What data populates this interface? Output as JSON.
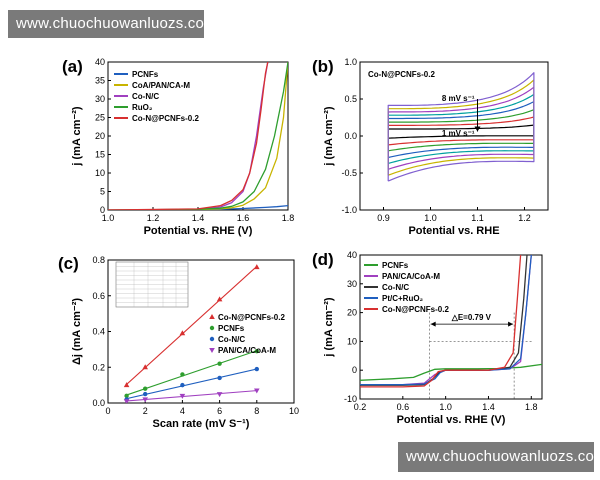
{
  "watermark": {
    "top": "www.chuochuowanluozs.com",
    "bottom": "www.chuochuowanluozs.com"
  },
  "chart_data": [
    {
      "panel": "(a)",
      "type": "line",
      "xlabel": "Potential vs. RHE (V)",
      "ylabel": "j (mA cm⁻²)",
      "xlim": [
        1.0,
        1.8
      ],
      "ylim": [
        0,
        40
      ],
      "xticks": [
        "1.0",
        "1.2",
        "1.4",
        "1.6",
        "1.8"
      ],
      "yticks": [
        "0",
        "5",
        "10",
        "15",
        "20",
        "25",
        "30",
        "35",
        "40"
      ],
      "legend": "top-left",
      "series": [
        {
          "name": "PCNFs",
          "color": "#1f5fbf",
          "x": [
            1.0,
            1.2,
            1.4,
            1.5,
            1.6,
            1.7,
            1.75,
            1.8
          ],
          "y": [
            0,
            0,
            0.1,
            0.2,
            0.4,
            0.7,
            0.9,
            1.2
          ]
        },
        {
          "name": "CoA/PAN/CA-M",
          "color": "#c8b400",
          "x": [
            1.0,
            1.4,
            1.5,
            1.55,
            1.6,
            1.65,
            1.7,
            1.75,
            1.78,
            1.8
          ],
          "y": [
            0,
            0.1,
            0.3,
            0.6,
            1.3,
            3,
            6,
            14,
            25,
            40
          ]
        },
        {
          "name": "Co-N/C",
          "color": "#a040c0",
          "x": [
            1.0,
            1.4,
            1.5,
            1.55,
            1.6,
            1.63,
            1.66,
            1.69,
            1.71
          ],
          "y": [
            0,
            0.2,
            0.8,
            2,
            5,
            10,
            20,
            33,
            40
          ]
        },
        {
          "name": "RuO₂",
          "color": "#2e9e2e",
          "x": [
            1.0,
            1.4,
            1.5,
            1.55,
            1.6,
            1.65,
            1.7,
            1.74,
            1.78,
            1.8
          ],
          "y": [
            0,
            0.2,
            0.5,
            1,
            2.2,
            5,
            11,
            20,
            32,
            40
          ]
        },
        {
          "name": "Co-N@PCNFs-0.2",
          "color": "#d83030",
          "x": [
            1.0,
            1.4,
            1.5,
            1.55,
            1.6,
            1.63,
            1.66,
            1.68,
            1.7,
            1.71
          ],
          "y": [
            0,
            0.3,
            1.2,
            2.6,
            5.5,
            10,
            18,
            27,
            37,
            40
          ]
        }
      ]
    },
    {
      "panel": "(b)",
      "type": "line",
      "title": "Co-N@PCNFs-0.2",
      "xlabel": "Potential vs. RHE",
      "ylabel": "j (mA cm⁻²)",
      "xlim": [
        0.85,
        1.25
      ],
      "ylim": [
        -1.0,
        1.0
      ],
      "xticks": [
        "0.9",
        "1.0",
        "1.1",
        "1.2"
      ],
      "yticks": [
        "-1.0",
        "-0.5",
        "0.0",
        "0.5",
        "1.0"
      ],
      "annotations": [
        "8 mV s⁻¹",
        "1 mV s⁻¹"
      ],
      "cv_x_range": [
        0.91,
        1.22
      ],
      "scan_rates_mV_s": [
        1,
        2,
        3,
        4,
        5,
        6,
        7,
        8
      ],
      "peak_current_anodic": [
        0.08,
        0.17,
        0.25,
        0.34,
        0.42,
        0.5,
        0.58,
        0.66
      ],
      "colors": [
        "#000000",
        "#d83030",
        "#2e9e2e",
        "#1f5fbf",
        "#00a0a0",
        "#a040c0",
        "#c8b400",
        "#8060d0"
      ]
    },
    {
      "panel": "(c)",
      "type": "scatter",
      "xlabel": "Scan rate (mV S⁻¹)",
      "ylabel": "Δj (mA cm⁻²)",
      "xlim": [
        0,
        10
      ],
      "ylim": [
        0,
        0.8
      ],
      "xticks": [
        "0",
        "2",
        "4",
        "6",
        "8",
        "10"
      ],
      "yticks": [
        "0.0",
        "0.2",
        "0.4",
        "0.6",
        "0.8"
      ],
      "legend": "right",
      "series": [
        {
          "name": "Co-N@PCNFs-0.2",
          "color": "#d83030",
          "marker": "triangle",
          "x": [
            1,
            2,
            4,
            6,
            8
          ],
          "y": [
            0.1,
            0.2,
            0.39,
            0.58,
            0.76
          ]
        },
        {
          "name": "PCNFs",
          "color": "#2e9e2e",
          "marker": "circle",
          "x": [
            1,
            2,
            4,
            6,
            8
          ],
          "y": [
            0.04,
            0.08,
            0.16,
            0.22,
            0.29
          ]
        },
        {
          "name": "Co-N/C",
          "color": "#1f5fbf",
          "marker": "circle",
          "x": [
            1,
            2,
            4,
            6,
            8
          ],
          "y": [
            0.02,
            0.05,
            0.1,
            0.14,
            0.19
          ]
        },
        {
          "name": "PAN/CA/CoA-M",
          "color": "#a040c0",
          "marker": "triangle-down",
          "x": [
            1,
            2,
            4,
            6,
            8
          ],
          "y": [
            0.01,
            0.02,
            0.04,
            0.05,
            0.07
          ]
        }
      ]
    },
    {
      "panel": "(d)",
      "type": "line",
      "xlabel": "Potential vs. RHE (V)",
      "ylabel": "j (mA cm⁻²)",
      "xlim": [
        0.2,
        1.9
      ],
      "ylim": [
        -10,
        40
      ],
      "xticks": [
        "0.2",
        "0.6",
        "1.0",
        "1.4",
        "1.8"
      ],
      "yticks": [
        "-10",
        "0",
        "10",
        "20",
        "30",
        "40"
      ],
      "legend": "top-left",
      "annotation": "△E=0.79 V",
      "series": [
        {
          "name": "PCNFs",
          "color": "#2e9e2e",
          "x": [
            0.2,
            0.5,
            0.7,
            0.8,
            0.9,
            1.0,
            1.3,
            1.5,
            1.7,
            1.9
          ],
          "y": [
            -3.5,
            -3,
            -2.5,
            -1,
            0.3,
            0.5,
            0.5,
            0.6,
            1,
            2
          ]
        },
        {
          "name": "PAN/CA/CoA-M",
          "color": "#a040c0",
          "x": [
            0.2,
            0.6,
            0.8,
            0.9,
            1.0,
            1.4,
            1.6,
            1.7,
            1.75,
            1.8
          ],
          "y": [
            -5,
            -5,
            -4.5,
            -1.5,
            0,
            0,
            0.5,
            3,
            20,
            40
          ]
        },
        {
          "name": "Co-N/C",
          "color": "#333333",
          "x": [
            0.2,
            0.6,
            0.8,
            0.88,
            0.95,
            1.0,
            1.4,
            1.6,
            1.68,
            1.73,
            1.76
          ],
          "y": [
            -5.2,
            -5.2,
            -5,
            -3,
            -0.5,
            0,
            0,
            1,
            6,
            25,
            40
          ]
        },
        {
          "name": "Pt/C+RuO₂",
          "color": "#1f5fbf",
          "x": [
            0.2,
            0.6,
            0.8,
            0.9,
            0.95,
            1.0,
            1.4,
            1.6,
            1.7,
            1.75,
            1.8
          ],
          "y": [
            -5,
            -5,
            -4.8,
            -3,
            -0.8,
            0,
            0,
            0.5,
            4,
            20,
            40
          ]
        },
        {
          "name": "Co-N@PCNFs-0.2",
          "color": "#d83030",
          "x": [
            0.2,
            0.6,
            0.8,
            0.87,
            0.93,
            1.0,
            1.4,
            1.55,
            1.63,
            1.67,
            1.7
          ],
          "y": [
            -5.8,
            -5.8,
            -5.5,
            -3.5,
            -0.5,
            0,
            0,
            1,
            6,
            25,
            40
          ]
        }
      ]
    }
  ]
}
